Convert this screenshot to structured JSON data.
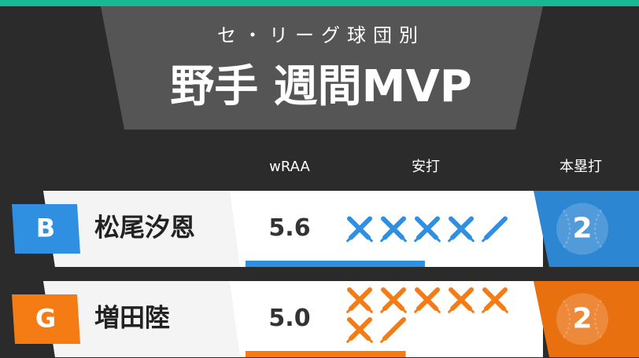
{
  "header": {
    "subtitle": "セ・リーグ球団別",
    "title": "野手 週間MVP"
  },
  "columns": [
    "wRAA",
    "安打",
    "本塁打"
  ],
  "rows": [
    {
      "team": "B",
      "name": "松尾汐恩",
      "wraa": 5.6,
      "wraa_label": "5.6",
      "hits": 9,
      "hr": 2,
      "color": "#2f8fe0",
      "hr_color": "#2d86d2"
    },
    {
      "team": "G",
      "name": "増田陸",
      "wraa": 5.0,
      "wraa_label": "5.0",
      "hits": 13,
      "hr": 2,
      "color": "#f57c15",
      "hr_color": "#e8700f"
    }
  ]
}
